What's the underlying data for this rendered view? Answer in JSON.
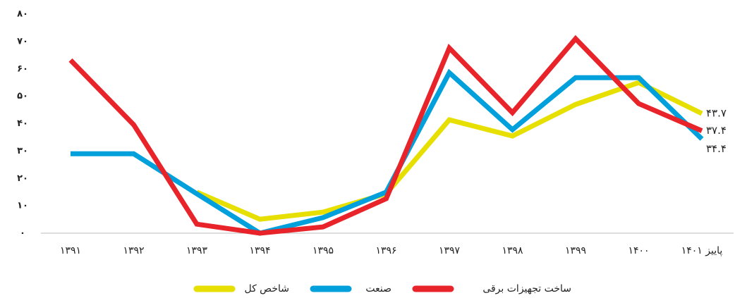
{
  "chart_data": {
    "type": "line",
    "categories": [
      "۱۳۹۱",
      "۱۳۹۲",
      "۱۳۹۳",
      "۱۳۹۴",
      "۱۳۹۵",
      "۱۳۹۶",
      "۱۳۹۷",
      "۱۳۹۸",
      "۱۳۹۹",
      "۱۴۰۰",
      "پاییز ۱۴۰۱"
    ],
    "series": [
      {
        "name": "شاخص کل",
        "color": "#e6df00",
        "values": [
          null,
          null,
          15,
          5.1,
          7.7,
          14.4,
          41.4,
          35.5,
          47,
          55,
          43.7
        ],
        "value_labels": [
          null,
          null,
          null,
          null,
          null,
          null,
          null,
          null,
          null,
          null,
          "۴۳.۷"
        ]
      },
      {
        "name": "صنعت",
        "color": "#00a0dc",
        "values": [
          29,
          29,
          14.4,
          0,
          5.7,
          15,
          58.6,
          37.8,
          56.8,
          56.8,
          34.4
        ],
        "value_labels": [
          null,
          null,
          null,
          null,
          null,
          null,
          null,
          null,
          null,
          null,
          "۳۴.۴"
        ]
      },
      {
        "name": "ساخت تجهیزات برقی",
        "color": "#e8232a",
        "values": [
          63.2,
          39.6,
          3.3,
          0,
          2.3,
          12.6,
          67.6,
          44,
          71,
          47.3,
          37.4
        ],
        "value_labels": [
          null,
          null,
          null,
          null,
          null,
          null,
          null,
          null,
          null,
          null,
          "۳۷.۴"
        ]
      }
    ],
    "ylim": [
      0,
      80
    ],
    "yticks": [
      {
        "value": 0,
        "label": "۰"
      },
      {
        "value": 10,
        "label": "۱۰"
      },
      {
        "value": 20,
        "label": "۲۰"
      },
      {
        "value": 30,
        "label": "۳۰"
      },
      {
        "value": 40,
        "label": "۴۰"
      },
      {
        "value": 50,
        "label": "۵۰"
      },
      {
        "value": 60,
        "label": "۶۰"
      },
      {
        "value": 70,
        "label": "۷۰"
      },
      {
        "value": 80,
        "label": "۸۰"
      }
    ],
    "grid": false
  }
}
